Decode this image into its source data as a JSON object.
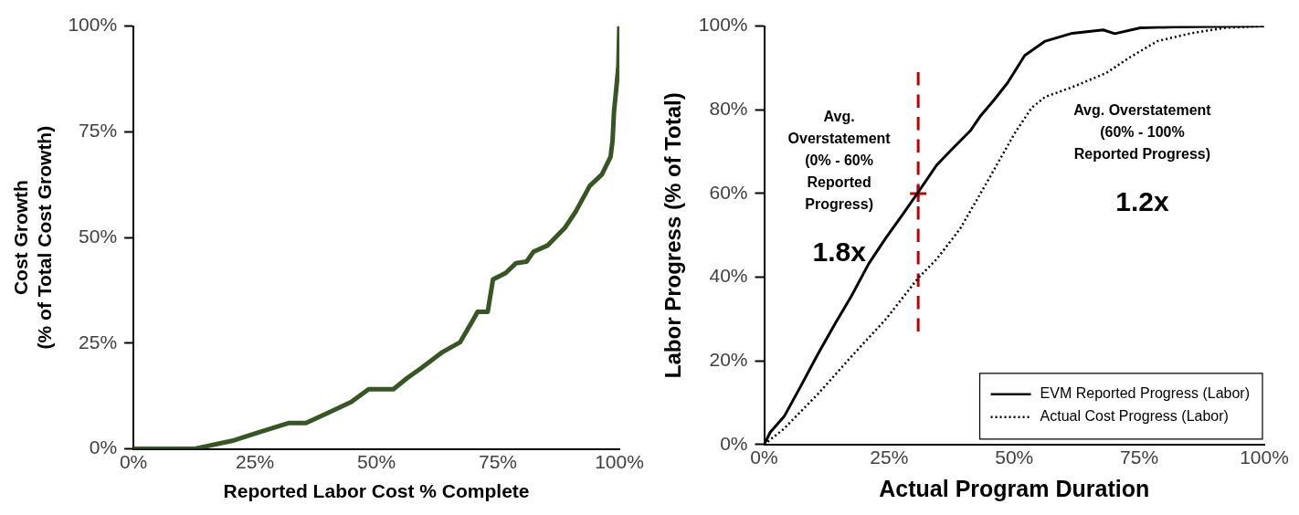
{
  "chart_data": [
    {
      "type": "line",
      "xlabel": "Reported Labor Cost % Complete",
      "ylabel": "Cost Growth\n(% of Total Cost Growth)",
      "xlim": [
        0,
        100
      ],
      "ylim": [
        0,
        100
      ],
      "xticks": [
        {
          "value": 0,
          "label": "0%"
        },
        {
          "value": 25,
          "label": "25%"
        },
        {
          "value": 50,
          "label": "50%"
        },
        {
          "value": 75,
          "label": "75%"
        },
        {
          "value": 100,
          "label": "100%"
        }
      ],
      "yticks": [
        {
          "value": 0,
          "label": "0%"
        },
        {
          "value": 25,
          "label": "25%"
        },
        {
          "value": 50,
          "label": "50%"
        },
        {
          "value": 75,
          "label": "75%"
        },
        {
          "value": 100,
          "label": "100%"
        }
      ],
      "grid": false,
      "legend": false,
      "marker": "none",
      "line_style": "solid",
      "series": [
        {
          "color": "#375623",
          "x": [
            0,
            12.4,
            20.3,
            25.4,
            31.9,
            35.5,
            39.8,
            44.8,
            48.4,
            53.5,
            56.4,
            59.2,
            63.6,
            67.2,
            70.1,
            70.8,
            72.9,
            74.0,
            76.6,
            78.7,
            80.9,
            82.3,
            85.2,
            88.8,
            91.0,
            93.9,
            96.4,
            98.2,
            98.6,
            98.9,
            99.3,
            99.8,
            100
          ],
          "values": [
            0,
            0,
            1.9,
            3.8,
            6.1,
            6.1,
            8.4,
            11.1,
            14.1,
            14.1,
            16.8,
            19.1,
            22.9,
            25.2,
            30.9,
            32.4,
            32.4,
            40.1,
            41.6,
            43.9,
            44.3,
            46.6,
            48.1,
            52.3,
            56.1,
            62.2,
            64.9,
            69.1,
            72.9,
            79.8,
            84.4,
            90.5,
            100
          ]
        }
      ]
    },
    {
      "type": "line",
      "xlabel": "Actual Program Duration",
      "ylabel": "Labor Progress (% of Total)",
      "xlim": [
        0,
        100
      ],
      "ylim": [
        0,
        100
      ],
      "xticks": [
        {
          "value": 0,
          "label": "0%"
        },
        {
          "value": 25,
          "label": "25%"
        },
        {
          "value": 50,
          "label": "50%"
        },
        {
          "value": 75,
          "label": "75%"
        },
        {
          "value": 100,
          "label": "100%"
        }
      ],
      "yticks": [
        {
          "value": 0,
          "label": "0%"
        },
        {
          "value": 20,
          "label": "20%"
        },
        {
          "value": 40,
          "label": "40%"
        },
        {
          "value": 60,
          "label": "60%"
        },
        {
          "value": 80,
          "label": "80%"
        },
        {
          "value": 100,
          "label": "100%"
        }
      ],
      "grid": false,
      "legend": "bottom right",
      "marker": "none",
      "annotations": [
        "Avg.\nOverstatement\n(0% - 60%\nReported\nProgress)",
        "1.8x",
        "Avg. Overstatement\n(60% - 100%\nReported Progress)",
        "1.2x"
      ],
      "series": [
        {
          "name": "EVM Reported Progress (Labor)",
          "color": "#000000",
          "line_style": "solid",
          "x": [
            0,
            1.2,
            4.0,
            7.3,
            10.7,
            14.1,
            17.5,
            20.9,
            24.3,
            27.7,
            30.8,
            34.5,
            37.9,
            41.3,
            43.3,
            46.0,
            48.7,
            52.1,
            56.2,
            61.6,
            67.8,
            70.1,
            75.2,
            82.0,
            100
          ],
          "values": [
            0,
            2.9,
            6.7,
            13.9,
            21.5,
            28.7,
            35.6,
            43.2,
            49.3,
            55.0,
            60.3,
            66.8,
            71.0,
            75.1,
            78.6,
            82.4,
            86.5,
            93.0,
            96.4,
            98.3,
            99.1,
            98.2,
            99.6,
            99.8,
            100
          ]
        },
        {
          "name": "Actual Cost Progress (Labor)",
          "color": "#000000",
          "line_style": "dotted",
          "x": [
            0,
            3.9,
            10.7,
            17.5,
            24.3,
            30.8,
            34.5,
            39.2,
            44.7,
            50.1,
            53.5,
            56.2,
            61.6,
            68.4,
            73.2,
            78.6,
            85.4,
            92.2,
            100
          ],
          "values": [
            0,
            3.7,
            12.0,
            21.1,
            29.9,
            39.8,
            44.3,
            51.6,
            63.0,
            74.4,
            80.5,
            83.1,
            85.4,
            88.8,
            92.6,
            96.4,
            98.3,
            99.6,
            100
          ]
        },
        {
          "color": "#c00000",
          "line_style": "dashed",
          "x": [
            30.8,
            30.8
          ],
          "values": [
            27,
            89
          ]
        },
        {
          "type": "scatter",
          "color": "#c00000",
          "marker": "cross",
          "x": [
            30.8
          ],
          "values": [
            60
          ]
        }
      ]
    }
  ]
}
